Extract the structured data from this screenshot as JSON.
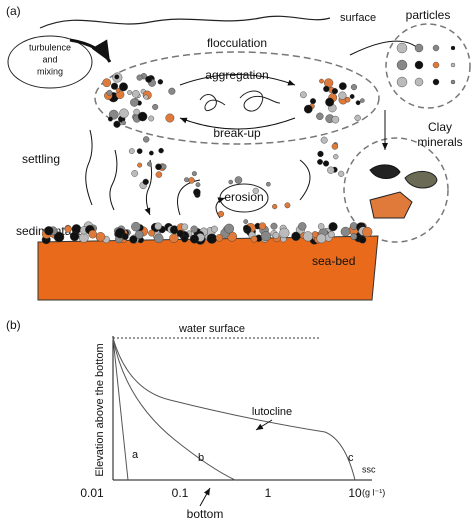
{
  "panel_a": {
    "label": "(a)",
    "surface": "surface",
    "particles": "particles",
    "turbulence_lines": [
      "turbulence",
      "and",
      "mixing"
    ],
    "flocculation": "flocculation",
    "aggregation": "aggregation",
    "break_up": "break-up",
    "clay_lines": [
      "Clay",
      "minerals"
    ],
    "settling": "settling",
    "erosion": "erosion",
    "sedimentation": "sedimentation",
    "sea_bed": "sea-bed"
  },
  "panel_b": {
    "label": "(b)",
    "water_surface": "water surface",
    "y_axis_label": "Elevation above the bottom",
    "lutocline": "lutocline",
    "curves": [
      "a",
      "b",
      "c"
    ],
    "x_axis_label": "ssc",
    "x_unit": "(g l⁻¹)",
    "x_tick_labels": [
      "0.01",
      "0.1",
      "1",
      "10"
    ],
    "bottom": "bottom"
  }
}
